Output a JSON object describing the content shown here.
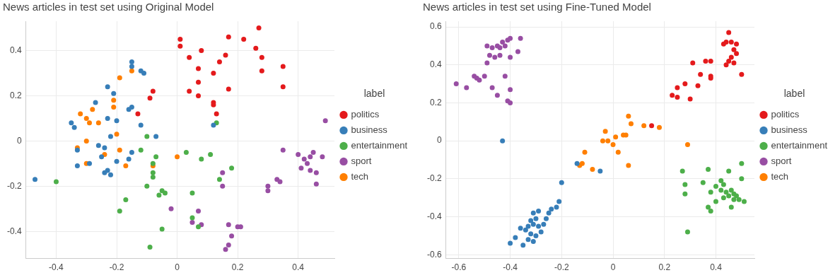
{
  "chart_data": [
    {
      "type": "scatter",
      "title": "News articles in test set using Original Model",
      "legend_title": "label",
      "legend": "right",
      "grid": true,
      "marker": "circle",
      "xlim": [
        -0.5,
        0.52
      ],
      "xticks": [
        -0.4,
        -0.2,
        0,
        0.2,
        0.4
      ],
      "ylim": [
        -0.52,
        0.53
      ],
      "yticks": [
        -0.4,
        -0.2,
        0,
        0.2,
        0.4
      ],
      "series": [
        {
          "name": "politics",
          "color": "#e41a1c",
          "values": [
            [
              0.27,
              0.5
            ],
            [
              0.01,
              0.45
            ],
            [
              0.22,
              0.45
            ],
            [
              0.17,
              0.46
            ],
            [
              0.26,
              0.41
            ],
            [
              0.08,
              0.4
            ],
            [
              0.28,
              0.37
            ],
            [
              0.04,
              0.37
            ],
            [
              0.28,
              0.31
            ],
            [
              0.35,
              0.33
            ],
            [
              0.14,
              0.35
            ],
            [
              0.16,
              0.38
            ],
            [
              0.01,
              0.42
            ],
            [
              0.07,
              0.32
            ],
            [
              0.12,
              0.3
            ],
            [
              0.17,
              0.23
            ],
            [
              0.35,
              0.24
            ],
            [
              0.04,
              0.22
            ],
            [
              0.07,
              0.2
            ],
            [
              0.12,
              0.17
            ],
            [
              0.12,
              0.16
            ],
            [
              0.13,
              0.12
            ],
            [
              -0.08,
              0.22
            ],
            [
              -0.09,
              0.19
            ],
            [
              0.07,
              0.26
            ],
            [
              -0.13,
              0.12
            ]
          ]
        },
        {
          "name": "business",
          "color": "#377eb8",
          "values": [
            [
              -0.47,
              -0.17
            ],
            [
              -0.15,
              0.35
            ],
            [
              -0.15,
              0.33
            ],
            [
              -0.12,
              0.31
            ],
            [
              -0.11,
              0.3
            ],
            [
              -0.23,
              0.24
            ],
            [
              -0.21,
              0.21
            ],
            [
              -0.27,
              0.17
            ],
            [
              -0.15,
              0.15
            ],
            [
              -0.16,
              0.14
            ],
            [
              -0.12,
              0.07
            ],
            [
              -0.35,
              0.08
            ],
            [
              -0.34,
              0.06
            ],
            [
              -0.23,
              0.1
            ],
            [
              -0.2,
              0.09
            ],
            [
              -0.22,
              0.02
            ],
            [
              -0.26,
              -0.02
            ],
            [
              -0.24,
              -0.03
            ],
            [
              -0.33,
              -0.04
            ],
            [
              -0.33,
              -0.11
            ],
            [
              -0.29,
              -0.1
            ],
            [
              -0.25,
              -0.07
            ],
            [
              -0.23,
              -0.13
            ],
            [
              -0.22,
              -0.15
            ],
            [
              -0.2,
              -0.09
            ],
            [
              -0.15,
              -0.05
            ],
            [
              -0.07,
              0.02
            ],
            [
              0.12,
              0.07
            ],
            [
              -0.24,
              -0.14
            ],
            [
              -0.16,
              -0.08
            ]
          ]
        },
        {
          "name": "entertainment",
          "color": "#4daf4a",
          "values": [
            [
              -0.4,
              -0.18
            ],
            [
              -0.19,
              -0.31
            ],
            [
              -0.09,
              -0.47
            ],
            [
              -0.1,
              0.02
            ],
            [
              -0.08,
              -0.1
            ],
            [
              -0.08,
              -0.14
            ],
            [
              -0.08,
              -0.16
            ],
            [
              -0.05,
              -0.22
            ],
            [
              -0.06,
              -0.24
            ],
            [
              -0.04,
              -0.23
            ],
            [
              -0.1,
              -0.2
            ],
            [
              -0.12,
              -0.04
            ],
            [
              -0.05,
              -0.39
            ],
            [
              0.03,
              -0.05
            ],
            [
              0.05,
              -0.23
            ],
            [
              0.05,
              -0.34
            ],
            [
              0.07,
              -0.38
            ],
            [
              0.08,
              -0.08
            ],
            [
              0.11,
              -0.06
            ],
            [
              0.13,
              0.08
            ],
            [
              0.18,
              -0.12
            ],
            [
              0.14,
              -0.17
            ],
            [
              -0.17,
              -0.26
            ],
            [
              -0.07,
              -0.07
            ]
          ]
        },
        {
          "name": "sport",
          "color": "#984ea3",
          "values": [
            [
              0.49,
              0.09
            ],
            [
              0.35,
              -0.04
            ],
            [
              0.4,
              -0.06
            ],
            [
              0.42,
              -0.08
            ],
            [
              0.43,
              -0.1
            ],
            [
              0.41,
              -0.12
            ],
            [
              0.44,
              -0.07
            ],
            [
              0.45,
              -0.05
            ],
            [
              0.46,
              -0.14
            ],
            [
              0.46,
              -0.19
            ],
            [
              0.48,
              -0.07
            ],
            [
              0.33,
              -0.17
            ],
            [
              0.34,
              -0.18
            ],
            [
              0.3,
              -0.2
            ],
            [
              0.3,
              -0.22
            ],
            [
              0.15,
              -0.14
            ],
            [
              0.15,
              -0.2
            ],
            [
              0.07,
              -0.31
            ],
            [
              0.08,
              -0.37
            ],
            [
              0.17,
              -0.37
            ],
            [
              0.2,
              -0.38
            ],
            [
              0.21,
              -0.38
            ],
            [
              0.18,
              -0.42
            ],
            [
              0.17,
              -0.46
            ],
            [
              0.16,
              -0.48
            ],
            [
              -0.02,
              -0.3
            ],
            [
              0.05,
              -0.36
            ],
            [
              0.44,
              -0.13
            ]
          ]
        },
        {
          "name": "tech",
          "color": "#ff7f00",
          "values": [
            [
              -0.19,
              0.28
            ],
            [
              -0.15,
              0.31
            ],
            [
              -0.21,
              0.18
            ],
            [
              -0.28,
              0.14
            ],
            [
              -0.32,
              0.12
            ],
            [
              -0.3,
              0.1
            ],
            [
              -0.26,
              0.08
            ],
            [
              -0.3,
              0.0
            ],
            [
              -0.33,
              -0.03
            ],
            [
              -0.3,
              -0.1
            ],
            [
              -0.19,
              -0.04
            ],
            [
              -0.2,
              0.03
            ],
            [
              -0.24,
              -0.06
            ],
            [
              -0.17,
              -0.11
            ],
            [
              -0.08,
              -0.11
            ],
            [
              0.0,
              -0.07
            ],
            [
              -0.29,
              0.08
            ],
            [
              -0.21,
              0.15
            ]
          ]
        }
      ]
    },
    {
      "type": "scatter",
      "title": "News articles in test set using Fine-Tuned Model",
      "legend_title": "label",
      "legend": "right",
      "grid": true,
      "marker": "circle",
      "xlim": [
        -0.65,
        0.55
      ],
      "xticks": [
        -0.6,
        -0.4,
        -0.2,
        0,
        0.2,
        0.4
      ],
      "ylim": [
        -0.62,
        0.63
      ],
      "yticks": [
        -0.6,
        -0.4,
        -0.2,
        0,
        0.2,
        0.4,
        0.6
      ],
      "series": [
        {
          "name": "politics",
          "color": "#e41a1c",
          "values": [
            [
              0.45,
              0.57
            ],
            [
              0.44,
              0.52
            ],
            [
              0.43,
              0.51
            ],
            [
              0.46,
              0.52
            ],
            [
              0.48,
              0.51
            ],
            [
              0.47,
              0.48
            ],
            [
              0.48,
              0.46
            ],
            [
              0.46,
              0.44
            ],
            [
              0.45,
              0.42
            ],
            [
              0.47,
              0.41
            ],
            [
              0.44,
              0.4
            ],
            [
              0.38,
              0.42
            ],
            [
              0.36,
              0.42
            ],
            [
              0.34,
              0.35
            ],
            [
              0.38,
              0.34
            ],
            [
              0.38,
              0.33
            ],
            [
              0.5,
              0.35
            ],
            [
              0.31,
              0.41
            ],
            [
              0.28,
              0.3
            ],
            [
              0.33,
              0.29
            ],
            [
              0.25,
              0.28
            ],
            [
              0.23,
              0.24
            ],
            [
              0.25,
              0.23
            ],
            [
              0.3,
              0.22
            ],
            [
              0.15,
              0.08
            ]
          ]
        },
        {
          "name": "business",
          "color": "#377eb8",
          "values": [
            [
              -0.43,
              0.0
            ],
            [
              -0.4,
              -0.54
            ],
            [
              -0.38,
              -0.51
            ],
            [
              -0.35,
              -0.55
            ],
            [
              -0.33,
              -0.52
            ],
            [
              -0.31,
              -0.53
            ],
            [
              -0.32,
              -0.49
            ],
            [
              -0.3,
              -0.5
            ],
            [
              -0.34,
              -0.47
            ],
            [
              -0.36,
              -0.46
            ],
            [
              -0.33,
              -0.45
            ],
            [
              -0.31,
              -0.44
            ],
            [
              -0.29,
              -0.45
            ],
            [
              -0.32,
              -0.42
            ],
            [
              -0.3,
              -0.41
            ],
            [
              -0.31,
              -0.38
            ],
            [
              -0.29,
              -0.37
            ],
            [
              -0.27,
              -0.44
            ],
            [
              -0.26,
              -0.41
            ],
            [
              -0.25,
              -0.38
            ],
            [
              -0.22,
              -0.35
            ],
            [
              -0.21,
              -0.32
            ],
            [
              -0.2,
              -0.22
            ],
            [
              -0.14,
              -0.12
            ],
            [
              -0.05,
              -0.16
            ],
            [
              -0.28,
              -0.48
            ],
            [
              -0.24,
              -0.36
            ]
          ]
        },
        {
          "name": "entertainment",
          "color": "#4daf4a",
          "values": [
            [
              0.27,
              -0.16
            ],
            [
              0.28,
              -0.28
            ],
            [
              0.29,
              -0.48
            ],
            [
              0.28,
              -0.23
            ],
            [
              0.35,
              -0.22
            ],
            [
              0.37,
              -0.15
            ],
            [
              0.37,
              -0.35
            ],
            [
              0.38,
              -0.37
            ],
            [
              0.4,
              -0.32
            ],
            [
              0.38,
              -0.27
            ],
            [
              0.4,
              -0.24
            ],
            [
              0.42,
              -0.21
            ],
            [
              0.42,
              -0.26
            ],
            [
              0.43,
              -0.23
            ],
            [
              0.43,
              -0.3
            ],
            [
              0.45,
              -0.29
            ],
            [
              0.46,
              -0.26
            ],
            [
              0.47,
              -0.28
            ],
            [
              0.48,
              -0.29
            ],
            [
              0.47,
              -0.31
            ],
            [
              0.46,
              -0.35
            ],
            [
              0.49,
              -0.31
            ],
            [
              0.5,
              -0.2
            ],
            [
              0.5,
              -0.12
            ],
            [
              0.51,
              -0.32
            ],
            [
              0.45,
              -0.16
            ],
            [
              0.44,
              -0.27
            ]
          ]
        },
        {
          "name": "sport",
          "color": "#984ea3",
          "values": [
            [
              -0.61,
              0.3
            ],
            [
              -0.57,
              0.28
            ],
            [
              -0.54,
              0.34
            ],
            [
              -0.53,
              0.33
            ],
            [
              -0.52,
              0.32
            ],
            [
              -0.5,
              0.34
            ],
            [
              -0.49,
              0.41
            ],
            [
              -0.48,
              0.45
            ],
            [
              -0.49,
              0.5
            ],
            [
              -0.47,
              0.49
            ],
            [
              -0.46,
              0.44
            ],
            [
              -0.45,
              0.5
            ],
            [
              -0.44,
              0.49
            ],
            [
              -0.43,
              0.52
            ],
            [
              -0.41,
              0.53
            ],
            [
              -0.42,
              0.5
            ],
            [
              -0.4,
              0.54
            ],
            [
              -0.36,
              0.54
            ],
            [
              -0.37,
              0.47
            ],
            [
              -0.4,
              0.44
            ],
            [
              -0.42,
              0.34
            ],
            [
              -0.47,
              0.28
            ],
            [
              -0.45,
              0.24
            ],
            [
              -0.4,
              0.27
            ],
            [
              -0.41,
              0.21
            ],
            [
              -0.4,
              0.2
            ],
            [
              -0.44,
              0.45
            ]
          ]
        },
        {
          "name": "tech",
          "color": "#ff7f00",
          "values": [
            [
              -0.13,
              -0.13
            ],
            [
              -0.12,
              -0.12
            ],
            [
              -0.11,
              -0.06
            ],
            [
              -0.08,
              -0.15
            ],
            [
              -0.03,
              0.05
            ],
            [
              -0.02,
              0.0
            ],
            [
              0.0,
              -0.02
            ],
            [
              0.01,
              0.02
            ],
            [
              0.04,
              0.03
            ],
            [
              0.02,
              -0.06
            ],
            [
              0.06,
              0.13
            ],
            [
              0.07,
              0.09
            ],
            [
              0.06,
              -0.13
            ],
            [
              0.05,
              0.03
            ],
            [
              0.12,
              0.08
            ],
            [
              0.18,
              0.07
            ],
            [
              0.29,
              -0.02
            ],
            [
              -0.04,
              0.0
            ]
          ]
        }
      ]
    }
  ]
}
